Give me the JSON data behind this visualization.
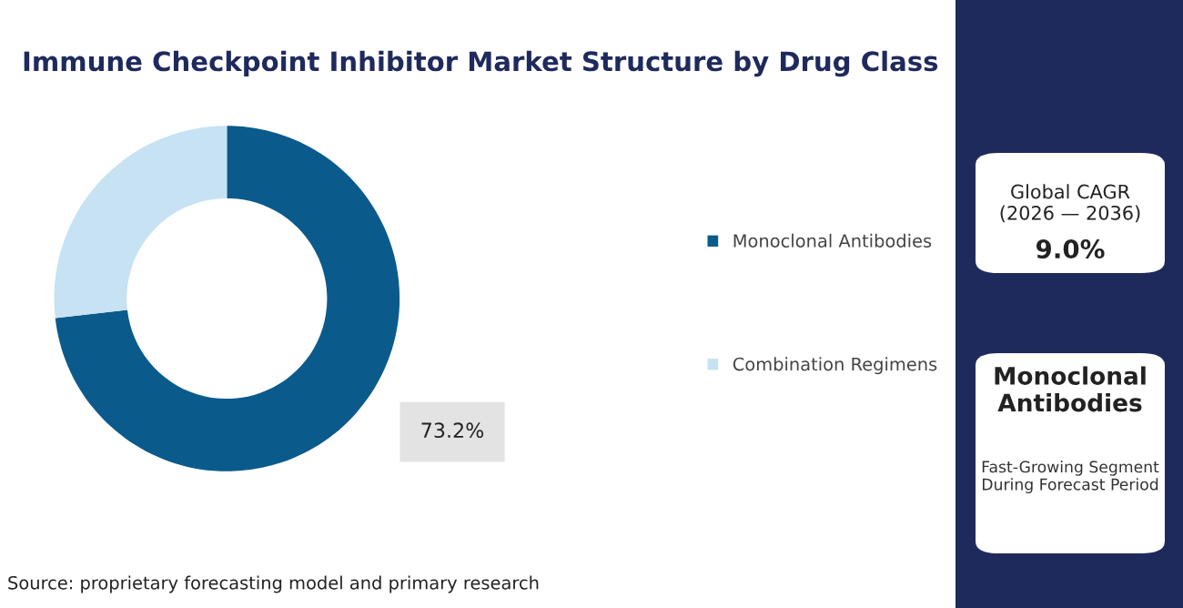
{
  "chart_data": {
    "type": "donut",
    "title": "Immune Checkpoint Inhibitor Market Structure by Drug Class",
    "categories": [
      "Monoclonal Antibodies",
      "Combination Regimens"
    ],
    "values": [
      73.2,
      26.8
    ],
    "colors": [
      "#0b5a8c",
      "#c6e2f3"
    ],
    "value_labels": [
      "73.2%",
      null
    ],
    "legend": "right",
    "annotations": [
      "Source: proprietary forecasting model and primary research",
      "Global CAGR\n(2026 — 2036)",
      "9.0%",
      "Monoclonal\nAntibodies",
      "Fast-Growing Segment\nDuring Forecast Period"
    ]
  }
}
